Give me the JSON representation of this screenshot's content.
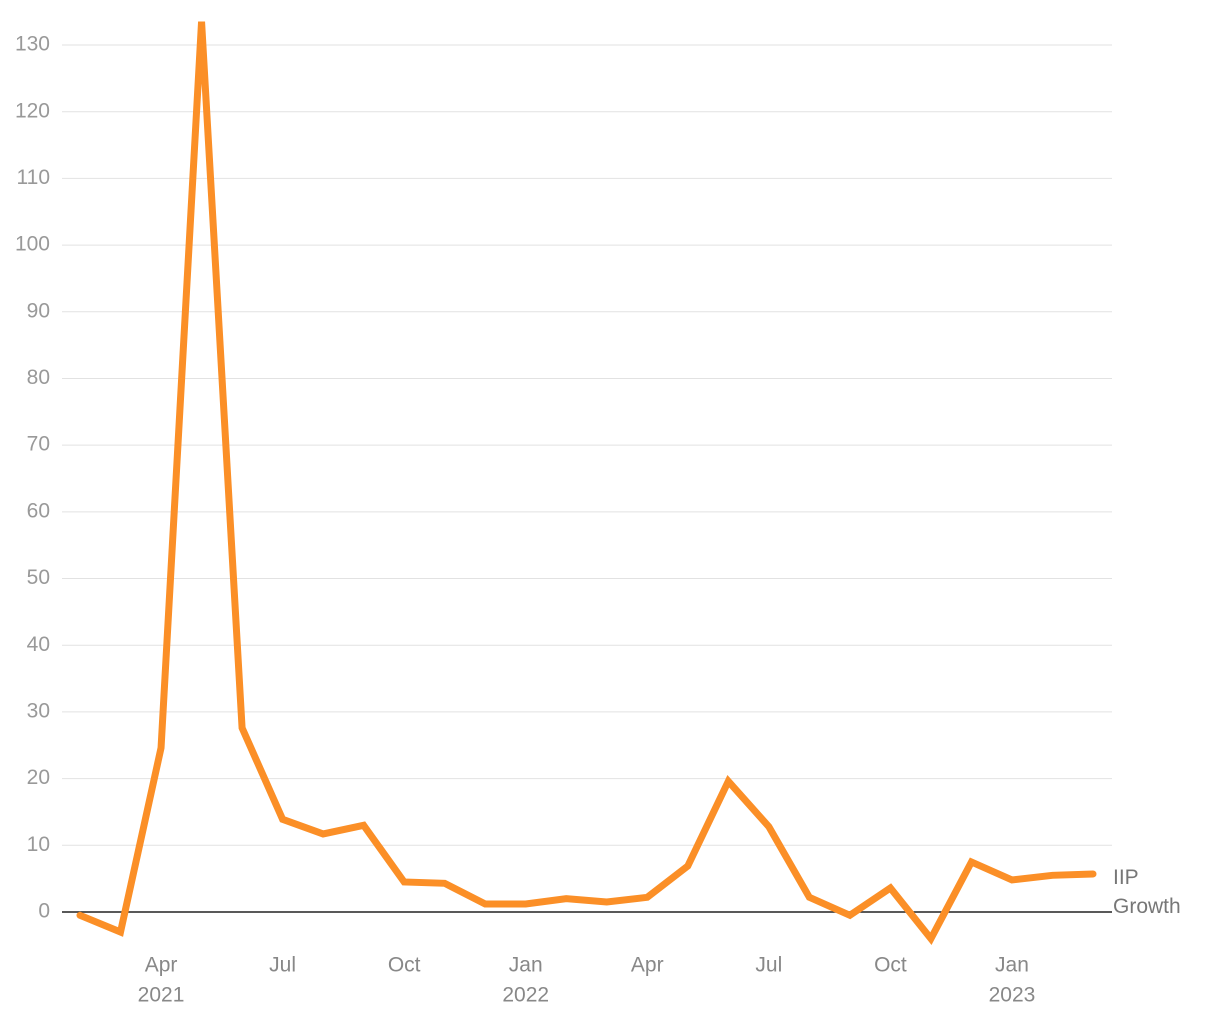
{
  "chart_data": {
    "type": "line",
    "categories": [
      null,
      null,
      "Apr",
      null,
      null,
      "Jul",
      null,
      null,
      "Oct",
      null,
      null,
      "Jan",
      null,
      null,
      "Apr",
      null,
      null,
      "Jul",
      null,
      null,
      "Oct",
      null,
      null,
      "Jan",
      null,
      null
    ],
    "years": [
      null,
      null,
      "2021",
      null,
      null,
      null,
      null,
      null,
      null,
      null,
      null,
      "2022",
      null,
      null,
      null,
      null,
      null,
      null,
      null,
      null,
      null,
      null,
      null,
      "2023",
      null,
      null
    ],
    "series": [
      {
        "name": "IIP Growth",
        "color": "#fb8f27",
        "values": [
          -0.5,
          -3.0,
          24.6,
          133.5,
          27.6,
          13.9,
          11.7,
          13.0,
          4.5,
          4.3,
          1.2,
          1.2,
          2.0,
          1.5,
          2.2,
          6.9,
          19.6,
          12.8,
          2.2,
          -0.5,
          3.6,
          -4.0,
          7.5,
          4.8,
          5.5,
          5.7
        ]
      }
    ],
    "ylim": [
      -6,
      136
    ],
    "yticks": [
      0,
      10,
      20,
      30,
      40,
      50,
      60,
      70,
      80,
      90,
      100,
      110,
      120,
      130
    ],
    "grid": true
  }
}
